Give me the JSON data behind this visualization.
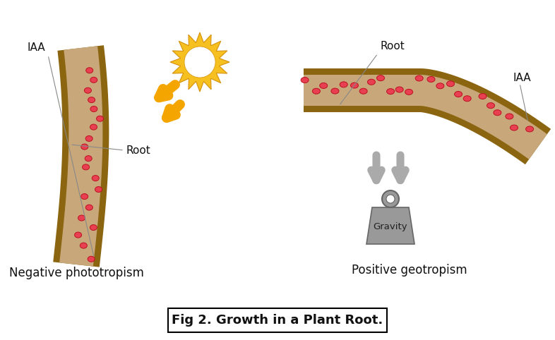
{
  "bg_color": "#ffffff",
  "root_outer_color": "#8B6510",
  "root_inner_color": "#C8A87A",
  "iaa_dot_color": "#E84050",
  "iaa_dot_edge": "#BB1122",
  "sun_body_color": "#F5C020",
  "sun_body_edge": "#D4900A",
  "arrow_color": "#F5A500",
  "gravity_arrow_color": "#aaaaaa",
  "weight_fill": "#999999",
  "weight_edge": "#666666",
  "text_color": "#111111",
  "label1": "Negative phototropism",
  "label2": "Positive geotropism",
  "iaa_label": "IAA",
  "root_label": "Root",
  "gravity_label": "Gravity",
  "fig_caption": "Fig 2. Growth in a Plant Root.",
  "label_fontsize": 12,
  "caption_fontsize": 13
}
